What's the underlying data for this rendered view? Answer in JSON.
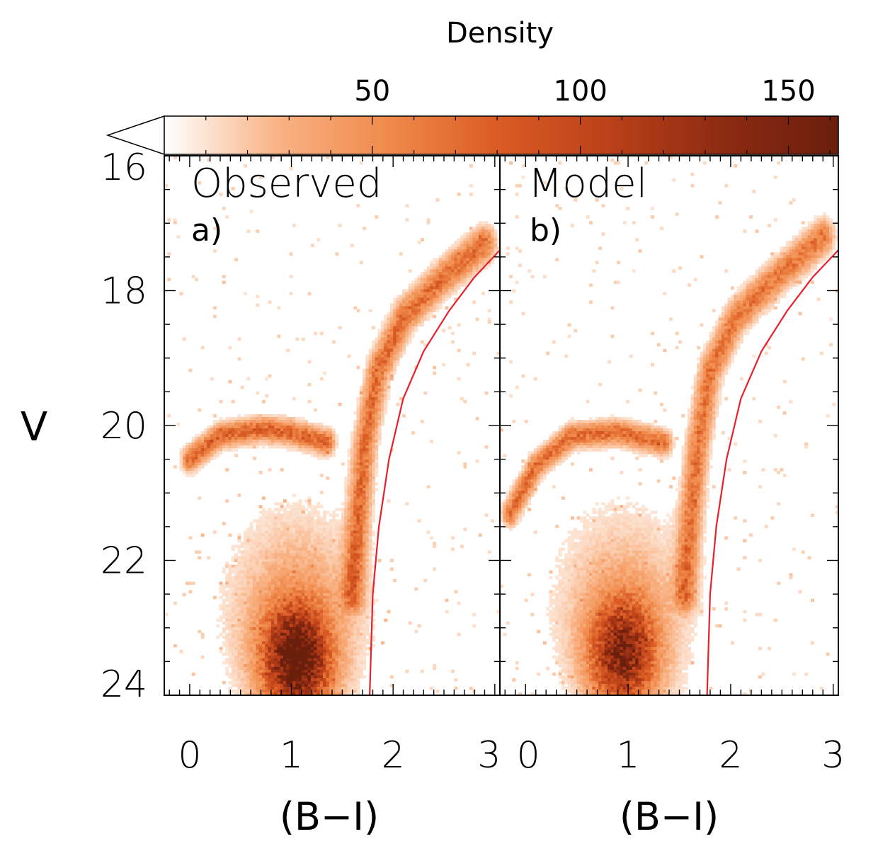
{
  "colorbar": {
    "title": "Density",
    "ticks": [
      50,
      100,
      150
    ],
    "range": [
      0,
      162
    ],
    "colors": [
      "#ffffff",
      "#f9b385",
      "#f08a4b",
      "#d95a23",
      "#b94019",
      "#8c2a12",
      "#6a1f0c"
    ]
  },
  "axes": {
    "ylabel": "V",
    "xlabel": "(B−I)",
    "yticks": [
      16,
      18,
      20,
      22,
      24
    ],
    "xticks": [
      0,
      1,
      2,
      3
    ],
    "xlim": [
      -0.25,
      3.05
    ],
    "ylim": [
      16,
      24
    ]
  },
  "chart_data": [
    {
      "type": "heatmap",
      "title": "Observed",
      "label": "a)",
      "xlabel": "(B−I)",
      "ylabel": "V",
      "xlim": [
        -0.25,
        3.05
      ],
      "ylim": [
        24,
        16
      ],
      "boundary_curve": {
        "color": "#e8202c",
        "points": [
          [
            1.77,
            24.0
          ],
          [
            1.8,
            22.5
          ],
          [
            1.86,
            21.5
          ],
          [
            1.96,
            20.5
          ],
          [
            2.1,
            19.6
          ],
          [
            2.3,
            18.9
          ],
          [
            2.55,
            18.3
          ],
          [
            2.8,
            17.8
          ],
          [
            3.05,
            17.4
          ]
        ]
      },
      "density_features": [
        {
          "feature": "main-sequence turnoff peak",
          "x": 1.05,
          "y": 23.5,
          "density": 160
        },
        {
          "feature": "subgiant/RGB branch",
          "x": [
            1.6,
            1.65,
            1.72,
            1.85,
            2.1,
            2.5,
            2.9
          ],
          "y": [
            22.5,
            21.5,
            20.3,
            19.2,
            18.4,
            17.8,
            17.3
          ],
          "density": 70
        },
        {
          "feature": "horizontal branch",
          "x": [
            0.0,
            0.3,
            0.7,
            1.0,
            1.35
          ],
          "y": [
            20.5,
            20.15,
            20.05,
            20.1,
            20.25
          ],
          "density": 75
        }
      ]
    },
    {
      "type": "heatmap",
      "title": "Model",
      "label": "b)",
      "xlabel": "(B−I)",
      "ylabel": "V",
      "xlim": [
        -0.25,
        3.05
      ],
      "ylim": [
        24,
        16
      ],
      "boundary_curve": {
        "color": "#e8202c",
        "points": [
          [
            1.77,
            24.0
          ],
          [
            1.8,
            22.5
          ],
          [
            1.86,
            21.5
          ],
          [
            1.96,
            20.5
          ],
          [
            2.1,
            19.6
          ],
          [
            2.3,
            18.9
          ],
          [
            2.55,
            18.3
          ],
          [
            2.8,
            17.8
          ],
          [
            3.05,
            17.4
          ]
        ]
      },
      "density_features": [
        {
          "feature": "main-sequence turnoff peak",
          "x": 0.95,
          "y": 23.4,
          "density": 130
        },
        {
          "feature": "subgiant/RGB branch",
          "x": [
            1.55,
            1.6,
            1.68,
            1.8,
            2.05,
            2.45,
            2.9
          ],
          "y": [
            22.5,
            21.5,
            20.3,
            19.2,
            18.4,
            17.8,
            17.2
          ],
          "density": 65
        },
        {
          "feature": "horizontal branch",
          "x": [
            -0.15,
            0.1,
            0.45,
            0.9,
            1.35
          ],
          "y": [
            21.3,
            20.6,
            20.15,
            20.1,
            20.25
          ],
          "density": 70
        }
      ]
    }
  ]
}
